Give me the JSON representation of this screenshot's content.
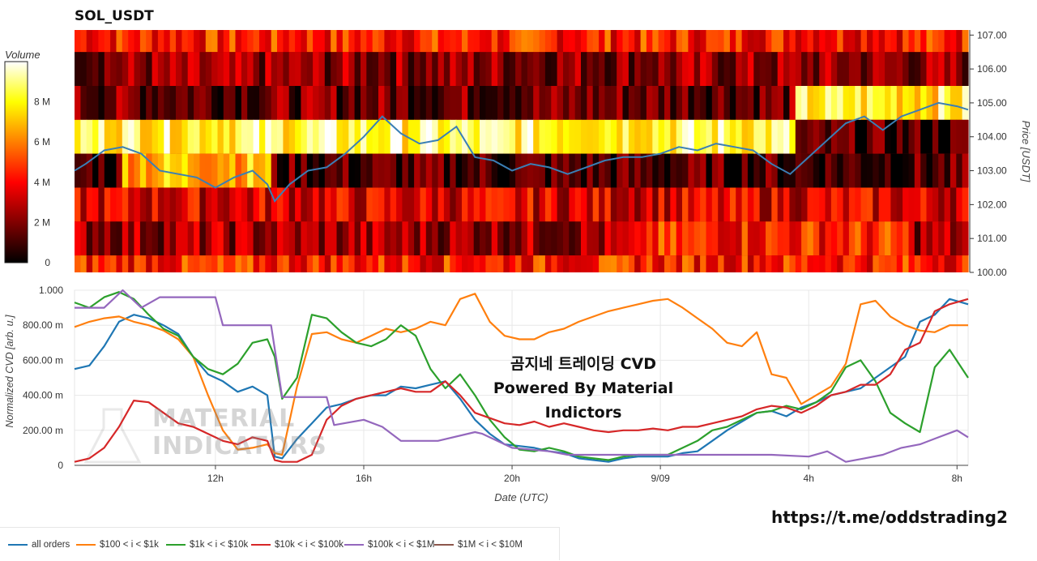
{
  "header": {
    "title": "SOL_USDT"
  },
  "colorbar": {
    "label": "Volume",
    "ticks": [
      "8 M",
      "6 M",
      "4 M",
      "2 M",
      "0"
    ],
    "tick_values": [
      8,
      6,
      4,
      2,
      0
    ],
    "max": 10
  },
  "annotation": {
    "line1": "곰지네 트레이딩 CVD",
    "line2": "Powered By Material Indictors",
    "url": "https://t.me/oddstrading2"
  },
  "watermark": {
    "line1": "MATERIAL",
    "line2": "INDICATORS"
  },
  "chart_data": [
    {
      "type": "heatmap",
      "title": "SOL_USDT",
      "ylabel": "Price [USDT]",
      "y_ticks": [
        "107.00",
        "106.00",
        "105.00",
        "104.00",
        "103.00",
        "102.00",
        "101.00",
        "100.00"
      ],
      "y_tick_values": [
        107,
        106,
        105,
        104,
        103,
        102,
        101,
        100
      ],
      "ylim": [
        100,
        107.15
      ],
      "xlim_hours": [
        8.2,
        32.3
      ],
      "price_bands": [
        {
          "low": 106.5,
          "high": 107.15,
          "level": 0.45
        },
        {
          "low": 105.5,
          "high": 106.5,
          "level": 0.22
        },
        {
          "low": 104.5,
          "high": 105.5,
          "level": 0.18
        },
        {
          "low": 103.5,
          "high": 104.5,
          "level": 0.85
        },
        {
          "low": 102.5,
          "high": 103.5,
          "level": 0.12
        },
        {
          "low": 101.5,
          "high": 102.5,
          "level": 0.35
        },
        {
          "low": 100.5,
          "high": 101.5,
          "level": 0.25
        },
        {
          "low": 100.0,
          "high": 100.5,
          "level": 0.45
        }
      ],
      "series": [
        {
          "name": "Price",
          "color": "#3a7fb5",
          "x": [
            8.2,
            8.5,
            9.0,
            9.5,
            10.0,
            10.5,
            11.0,
            11.5,
            12.0,
            12.5,
            13.0,
            13.4,
            13.6,
            14.0,
            14.5,
            15.0,
            15.5,
            16.0,
            16.5,
            17.0,
            17.5,
            18.0,
            18.5,
            19.0,
            19.5,
            20.0,
            20.5,
            21.0,
            21.5,
            22.0,
            22.5,
            23.0,
            23.5,
            24.0,
            24.5,
            25.0,
            25.5,
            26.0,
            26.5,
            27.0,
            27.5,
            28.0,
            28.5,
            29.0,
            29.5,
            30.0,
            30.5,
            31.0,
            31.5,
            32.0,
            32.3
          ],
          "y": [
            103.0,
            103.2,
            103.6,
            103.7,
            103.5,
            103.0,
            102.9,
            102.8,
            102.5,
            102.8,
            103.0,
            102.6,
            102.1,
            102.6,
            103.0,
            103.1,
            103.5,
            104.0,
            104.6,
            104.1,
            103.8,
            103.9,
            104.3,
            103.4,
            103.3,
            103.0,
            103.2,
            103.1,
            102.9,
            103.1,
            103.3,
            103.4,
            103.4,
            103.5,
            103.7,
            103.6,
            103.8,
            103.7,
            103.6,
            103.2,
            102.9,
            103.4,
            103.9,
            104.4,
            104.6,
            104.2,
            104.6,
            104.8,
            105.0,
            104.9,
            104.8
          ]
        }
      ]
    },
    {
      "type": "line",
      "xlabel": "Date (UTC)",
      "ylabel": "Normalized CVD [arb. u.]",
      "x_ticks": [
        "12h",
        "16h",
        "20h",
        "9/09",
        "4h",
        "8h"
      ],
      "x_tick_values": [
        12,
        16,
        20,
        24,
        28,
        32
      ],
      "y_ticks": [
        "1.000",
        "800.00 m",
        "600.00 m",
        "400.00 m",
        "200.00 m",
        "0"
      ],
      "y_tick_values": [
        1.0,
        0.8,
        0.6,
        0.4,
        0.2,
        0
      ],
      "xlim": [
        8.2,
        32.3
      ],
      "ylim": [
        0,
        1.0
      ],
      "legend": "bottom",
      "series": [
        {
          "name": "all orders",
          "color": "#1f77b4",
          "x": [
            8.2,
            8.6,
            9.0,
            9.4,
            9.8,
            10.2,
            10.6,
            11.0,
            11.4,
            11.8,
            12.2,
            12.6,
            13.0,
            13.4,
            13.6,
            13.8,
            14.2,
            14.6,
            15.0,
            15.4,
            15.8,
            16.2,
            16.6,
            17.0,
            17.4,
            17.8,
            18.2,
            18.6,
            19.0,
            19.4,
            19.8,
            20.2,
            20.6,
            21.0,
            21.4,
            21.8,
            22.2,
            22.6,
            23.0,
            23.4,
            23.8,
            24.2,
            24.6,
            25.0,
            25.4,
            25.8,
            26.2,
            26.6,
            27.0,
            27.4,
            27.8,
            28.2,
            28.6,
            29.0,
            29.4,
            29.8,
            30.2,
            30.6,
            31.0,
            31.4,
            31.8,
            32.3
          ],
          "y": [
            0.55,
            0.57,
            0.68,
            0.82,
            0.86,
            0.84,
            0.8,
            0.75,
            0.62,
            0.52,
            0.48,
            0.42,
            0.45,
            0.4,
            0.05,
            0.04,
            0.15,
            0.24,
            0.33,
            0.35,
            0.38,
            0.4,
            0.4,
            0.45,
            0.44,
            0.46,
            0.48,
            0.38,
            0.26,
            0.18,
            0.12,
            0.11,
            0.1,
            0.08,
            0.07,
            0.04,
            0.03,
            0.02,
            0.04,
            0.05,
            0.05,
            0.05,
            0.07,
            0.08,
            0.14,
            0.2,
            0.25,
            0.3,
            0.31,
            0.28,
            0.33,
            0.36,
            0.4,
            0.42,
            0.44,
            0.5,
            0.56,
            0.62,
            0.82,
            0.86,
            0.95,
            0.92
          ]
        },
        {
          "name": "$100 < i < $1k",
          "color": "#ff7f0e",
          "x": [
            8.2,
            8.6,
            9.0,
            9.4,
            9.8,
            10.2,
            10.6,
            11.0,
            11.4,
            11.8,
            12.2,
            12.6,
            13.0,
            13.4,
            13.6,
            13.8,
            14.2,
            14.6,
            15.0,
            15.4,
            15.8,
            16.2,
            16.6,
            17.0,
            17.4,
            17.8,
            18.2,
            18.6,
            19.0,
            19.4,
            19.8,
            20.2,
            20.6,
            21.0,
            21.4,
            21.8,
            22.2,
            22.6,
            23.0,
            23.4,
            23.8,
            24.2,
            24.6,
            25.0,
            25.4,
            25.8,
            26.2,
            26.6,
            27.0,
            27.4,
            27.8,
            28.2,
            28.6,
            29.0,
            29.4,
            29.8,
            30.2,
            30.6,
            31.0,
            31.4,
            31.8,
            32.3
          ],
          "y": [
            0.79,
            0.82,
            0.84,
            0.85,
            0.82,
            0.8,
            0.77,
            0.72,
            0.62,
            0.4,
            0.2,
            0.09,
            0.1,
            0.12,
            0.07,
            0.06,
            0.45,
            0.75,
            0.76,
            0.72,
            0.7,
            0.74,
            0.78,
            0.76,
            0.78,
            0.82,
            0.8,
            0.95,
            0.98,
            0.82,
            0.74,
            0.72,
            0.72,
            0.76,
            0.78,
            0.82,
            0.85,
            0.88,
            0.9,
            0.92,
            0.94,
            0.95,
            0.9,
            0.84,
            0.78,
            0.7,
            0.68,
            0.76,
            0.52,
            0.5,
            0.35,
            0.4,
            0.45,
            0.58,
            0.92,
            0.94,
            0.85,
            0.8,
            0.77,
            0.76,
            0.8,
            0.8
          ]
        },
        {
          "name": "$1k < i < $10k",
          "color": "#2ca02c",
          "x": [
            8.2,
            8.6,
            9.0,
            9.4,
            9.8,
            10.2,
            10.6,
            11.0,
            11.4,
            11.8,
            12.2,
            12.6,
            13.0,
            13.4,
            13.6,
            13.8,
            14.2,
            14.6,
            15.0,
            15.4,
            15.8,
            16.2,
            16.6,
            17.0,
            17.4,
            17.8,
            18.2,
            18.6,
            19.0,
            19.4,
            19.8,
            20.2,
            20.6,
            21.0,
            21.4,
            21.8,
            22.2,
            22.6,
            23.0,
            23.4,
            23.8,
            24.2,
            24.6,
            25.0,
            25.4,
            25.8,
            26.2,
            26.6,
            27.0,
            27.4,
            27.8,
            28.2,
            28.6,
            29.0,
            29.4,
            29.8,
            30.2,
            30.6,
            31.0,
            31.4,
            31.8,
            32.3
          ],
          "y": [
            0.93,
            0.9,
            0.96,
            0.99,
            0.95,
            0.86,
            0.78,
            0.74,
            0.62,
            0.55,
            0.52,
            0.58,
            0.7,
            0.72,
            0.62,
            0.38,
            0.5,
            0.86,
            0.84,
            0.76,
            0.7,
            0.68,
            0.72,
            0.8,
            0.74,
            0.55,
            0.44,
            0.52,
            0.4,
            0.26,
            0.16,
            0.09,
            0.08,
            0.1,
            0.08,
            0.05,
            0.04,
            0.03,
            0.05,
            0.06,
            0.06,
            0.06,
            0.1,
            0.14,
            0.2,
            0.22,
            0.26,
            0.3,
            0.31,
            0.34,
            0.32,
            0.36,
            0.42,
            0.56,
            0.6,
            0.48,
            0.3,
            0.24,
            0.19,
            0.56,
            0.66,
            0.5
          ]
        },
        {
          "name": "$10k < i < $100k",
          "color": "#d62728",
          "x": [
            8.2,
            8.6,
            9.0,
            9.4,
            9.8,
            10.2,
            10.6,
            11.0,
            11.4,
            11.8,
            12.2,
            12.6,
            13.0,
            13.4,
            13.6,
            13.8,
            14.2,
            14.6,
            15.0,
            15.4,
            15.8,
            16.2,
            16.6,
            17.0,
            17.4,
            17.8,
            18.2,
            18.6,
            19.0,
            19.4,
            19.8,
            20.2,
            20.6,
            21.0,
            21.4,
            21.8,
            22.2,
            22.6,
            23.0,
            23.4,
            23.8,
            24.2,
            24.6,
            25.0,
            25.4,
            25.8,
            26.2,
            26.6,
            27.0,
            27.4,
            27.8,
            28.2,
            28.6,
            29.0,
            29.4,
            29.8,
            30.2,
            30.6,
            31.0,
            31.4,
            31.8,
            32.3
          ],
          "y": [
            0.02,
            0.04,
            0.1,
            0.22,
            0.37,
            0.36,
            0.3,
            0.24,
            0.22,
            0.18,
            0.14,
            0.12,
            0.16,
            0.14,
            0.03,
            0.02,
            0.02,
            0.06,
            0.26,
            0.34,
            0.38,
            0.4,
            0.42,
            0.44,
            0.42,
            0.42,
            0.48,
            0.4,
            0.3,
            0.27,
            0.24,
            0.23,
            0.25,
            0.22,
            0.24,
            0.22,
            0.2,
            0.19,
            0.2,
            0.2,
            0.21,
            0.2,
            0.22,
            0.22,
            0.24,
            0.26,
            0.28,
            0.32,
            0.34,
            0.33,
            0.3,
            0.34,
            0.4,
            0.42,
            0.46,
            0.46,
            0.52,
            0.66,
            0.7,
            0.88,
            0.92,
            0.95
          ]
        },
        {
          "name": "$100k < i < $1M",
          "color": "#9467bd",
          "x": [
            8.2,
            9.0,
            9.5,
            10.0,
            10.5,
            11.0,
            11.5,
            12.0,
            12.2,
            13.0,
            13.5,
            13.8,
            15.0,
            15.2,
            16.0,
            16.5,
            17.0,
            18.0,
            19.0,
            19.2,
            20.0,
            21.0,
            21.5,
            22.0,
            24.0,
            25.0,
            26.0,
            27.0,
            28.0,
            28.5,
            29.0,
            29.5,
            30.0,
            30.5,
            31.0,
            31.5,
            32.0,
            32.3
          ],
          "y": [
            0.9,
            0.9,
            1.0,
            0.9,
            0.96,
            0.96,
            0.96,
            0.96,
            0.8,
            0.8,
            0.8,
            0.39,
            0.39,
            0.23,
            0.26,
            0.22,
            0.14,
            0.14,
            0.19,
            0.18,
            0.1,
            0.08,
            0.06,
            0.06,
            0.06,
            0.06,
            0.06,
            0.06,
            0.05,
            0.08,
            0.02,
            0.04,
            0.06,
            0.1,
            0.12,
            0.16,
            0.2,
            0.16
          ]
        },
        {
          "name": "$1M < i < $10M",
          "color": "#8c564b",
          "x": [],
          "y": []
        }
      ]
    }
  ]
}
